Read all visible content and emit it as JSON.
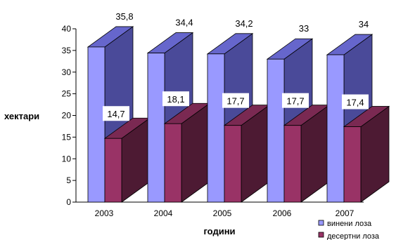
{
  "chart_data": {
    "type": "bar",
    "subtype": "3d-clustered",
    "categories": [
      "2003",
      "2004",
      "2005",
      "2006",
      "2007"
    ],
    "series": [
      {
        "name": "винени лоза",
        "values": [
          35.8,
          34.4,
          34.2,
          33,
          34
        ],
        "labels": [
          "35,8",
          "34,4",
          "34,2",
          "33",
          "34"
        ]
      },
      {
        "name": "десертни лоза",
        "values": [
          14.7,
          18.1,
          17.7,
          17.7,
          17.4
        ],
        "labels": [
          "14,7",
          "18,1",
          "17,7",
          "17,7",
          "17,4"
        ]
      }
    ],
    "xlabel": "години",
    "ylabel": "хектари",
    "ylim": [
      0,
      40
    ],
    "yticks": [
      0,
      5,
      10,
      15,
      20,
      25,
      30,
      35,
      40
    ],
    "grid": false,
    "legend_position": "bottom-right",
    "colors": {
      "series_front": [
        "#9999ff",
        "#993366"
      ],
      "series_side": [
        "#4a4a99",
        "#4d1a33"
      ],
      "series_top": [
        "#6666cc",
        "#7a2952"
      ]
    }
  }
}
